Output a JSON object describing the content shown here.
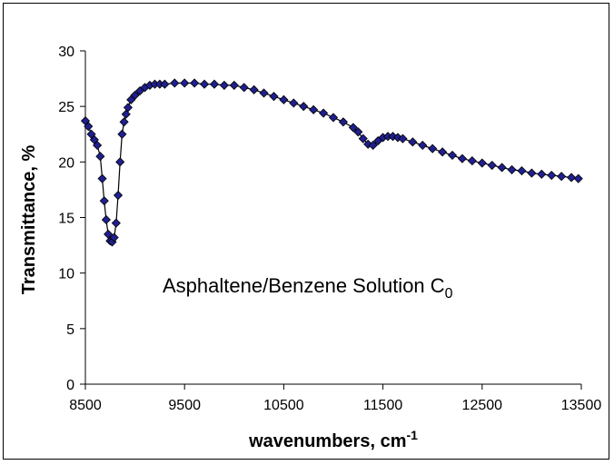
{
  "chart_data": {
    "type": "scatter",
    "title": "",
    "annotation": {
      "text": "Asphaltene/Benzene Solution C",
      "subscript": "0"
    },
    "xlabel": "wavenumbers, cm",
    "xlabel_superscript": "-1",
    "ylabel": "Transmittance, %",
    "xlim": [
      8500,
      13500
    ],
    "ylim": [
      0,
      30
    ],
    "xticks": [
      "8500",
      "9500",
      "10500",
      "11500",
      "12500",
      "13500"
    ],
    "yticks": [
      "0",
      "5",
      "10",
      "15",
      "20",
      "25",
      "30"
    ],
    "grid": false,
    "legend": "none",
    "series": [
      {
        "marker": "diamond",
        "marker_color": "#1f1f8f",
        "line_color": "#000000",
        "x": [
          8500,
          8530,
          8560,
          8590,
          8620,
          8650,
          8670,
          8690,
          8710,
          8730,
          8750,
          8770,
          8790,
          8810,
          8830,
          8850,
          8870,
          8890,
          8910,
          8930,
          8960,
          9000,
          9050,
          9100,
          9150,
          9200,
          9250,
          9300,
          9400,
          9500,
          9600,
          9700,
          9800,
          9900,
          10000,
          10100,
          10200,
          10300,
          10400,
          10500,
          10600,
          10700,
          10800,
          10900,
          11000,
          11100,
          11200,
          11250,
          11300,
          11350,
          11400,
          11450,
          11500,
          11550,
          11600,
          11650,
          11700,
          11800,
          11900,
          12000,
          12100,
          12200,
          12300,
          12400,
          12500,
          12600,
          12700,
          12800,
          12900,
          13000,
          13100,
          13200,
          13300,
          13400,
          13470
        ],
        "y": [
          23.7,
          23.2,
          22.5,
          22.0,
          21.5,
          20.5,
          18.5,
          16.5,
          14.8,
          13.5,
          12.9,
          12.8,
          13.2,
          14.5,
          17.0,
          20.0,
          22.5,
          23.6,
          24.3,
          24.9,
          25.6,
          26.0,
          26.4,
          26.7,
          26.9,
          27.0,
          27.0,
          27.0,
          27.1,
          27.1,
          27.1,
          27.0,
          27.0,
          26.9,
          26.9,
          26.7,
          26.5,
          26.2,
          25.9,
          25.6,
          25.3,
          25.0,
          24.7,
          24.4,
          24.0,
          23.6,
          23.1,
          22.7,
          22.1,
          21.6,
          21.5,
          21.9,
          22.2,
          22.3,
          22.3,
          22.2,
          22.1,
          21.8,
          21.5,
          21.2,
          20.9,
          20.6,
          20.3,
          20.1,
          19.9,
          19.7,
          19.5,
          19.3,
          19.2,
          19.0,
          18.9,
          18.8,
          18.7,
          18.6,
          18.5
        ]
      }
    ]
  }
}
